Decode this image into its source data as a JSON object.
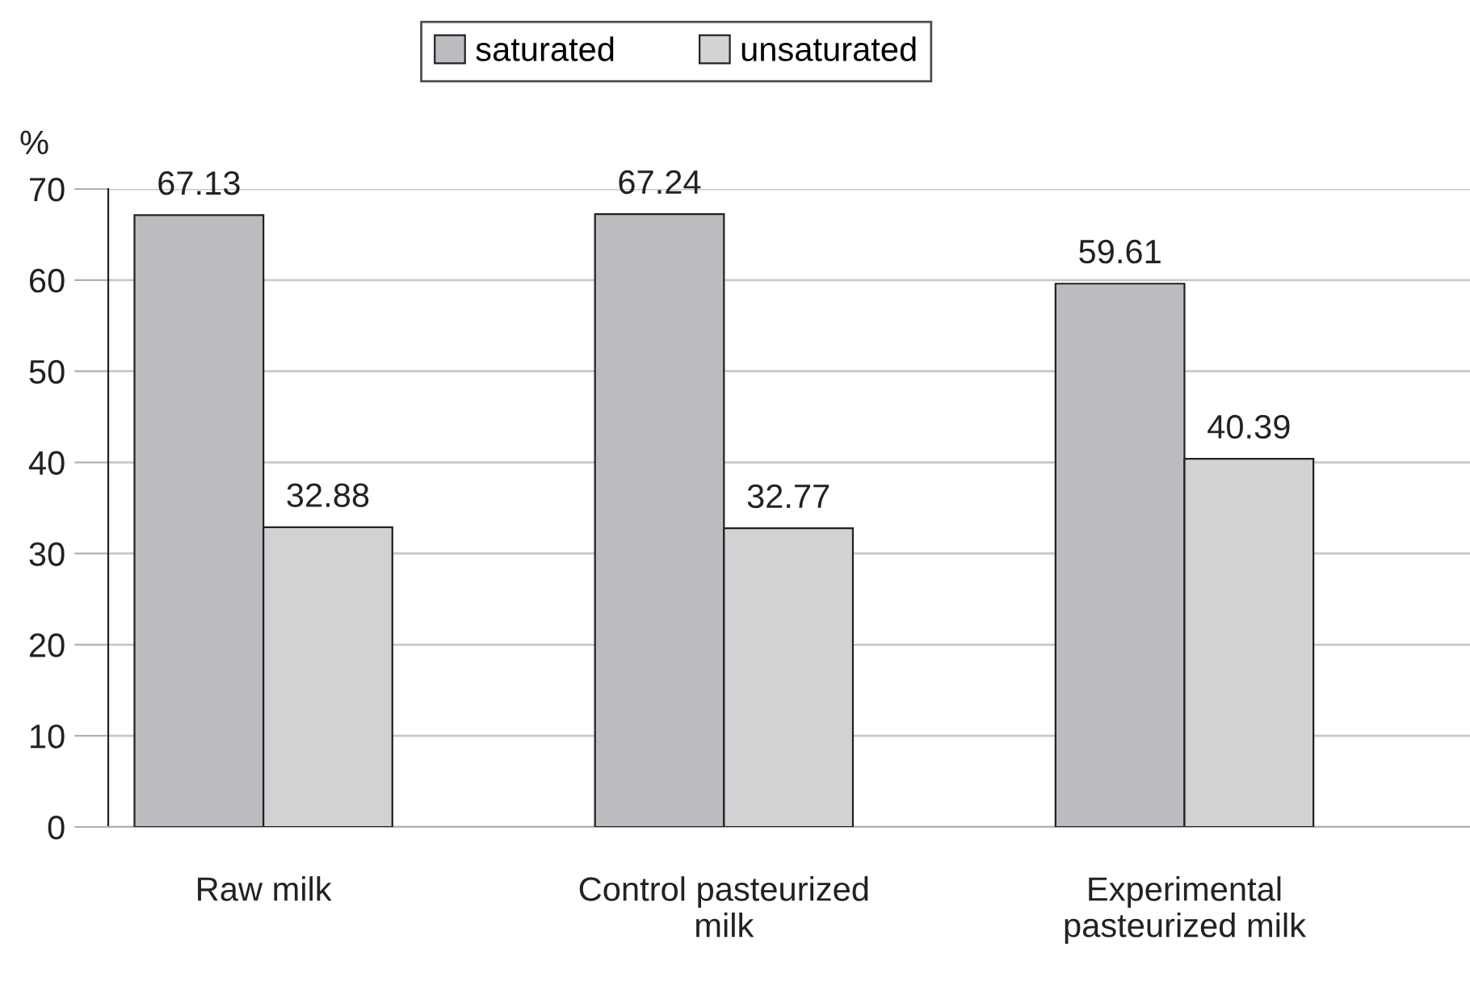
{
  "chart_data": {
    "type": "bar",
    "ylabel": "%",
    "categories": [
      "Raw milk",
      "Control pasteurized\nmilk",
      "Experimental\npasteurized milk"
    ],
    "series": [
      {
        "name": "saturated",
        "color": "#bbbcc0",
        "values": [
          67.13,
          67.24,
          59.61
        ]
      },
      {
        "name": "unsaturated",
        "color": "#d1d2d4",
        "values": [
          32.88,
          32.77,
          40.39
        ]
      }
    ],
    "ylim": [
      0,
      70
    ],
    "yticks": [
      0,
      10,
      20,
      30,
      40,
      50,
      60,
      70
    ],
    "grid": "y",
    "legend": "top",
    "data_labels": true
  }
}
